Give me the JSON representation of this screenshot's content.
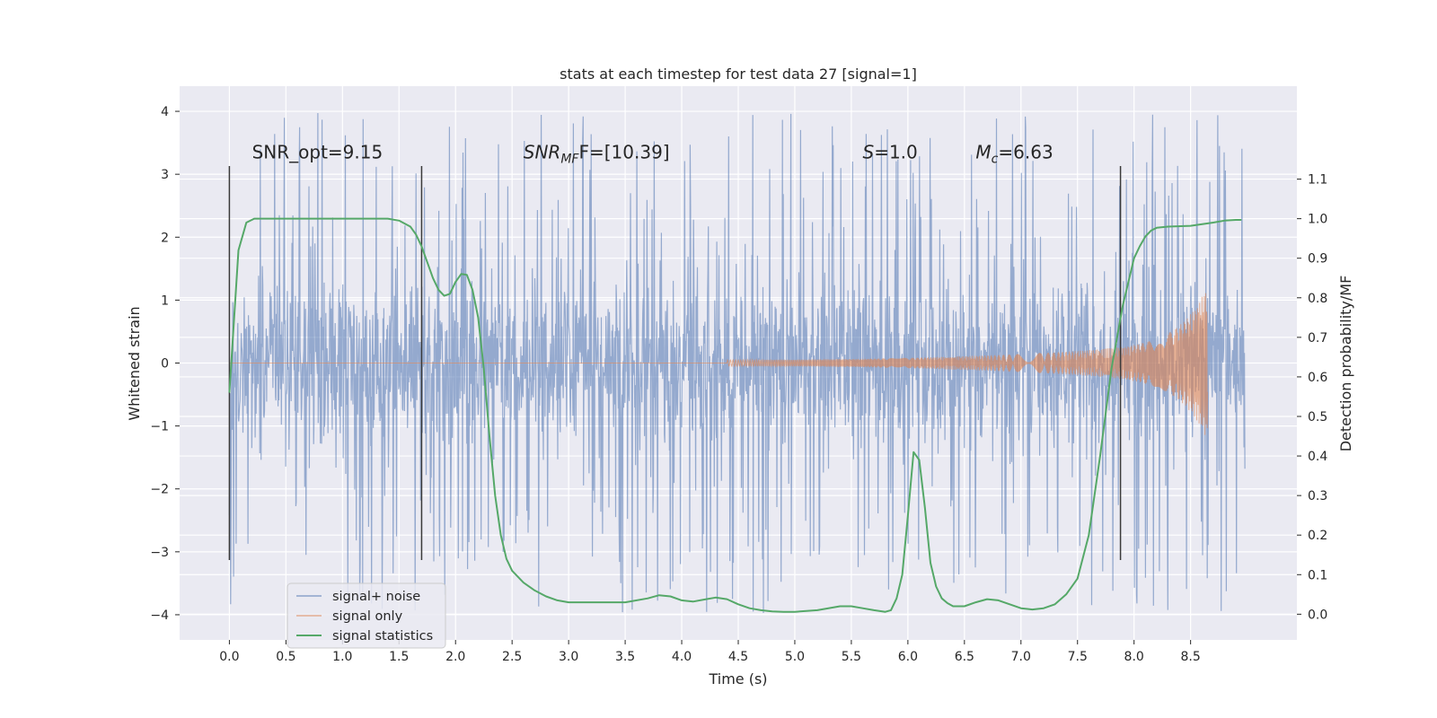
{
  "chart_data": {
    "type": "line",
    "title": "stats at each timestep for test data 27 [signal=1]",
    "xlabel": "Time (s)",
    "ylabel": "Whitened strain",
    "y2label": "Detection probability/MF",
    "xlim": [
      -0.44,
      9.44
    ],
    "ylim": [
      -4.4,
      4.4
    ],
    "y2lim": [
      -0.065,
      1.335
    ],
    "xticks": [
      0.0,
      0.5,
      1.0,
      1.5,
      2.0,
      2.5,
      3.0,
      3.5,
      4.0,
      4.5,
      5.0,
      5.5,
      6.0,
      6.5,
      7.0,
      7.5,
      8.0,
      8.5
    ],
    "xtick_labels": [
      "0.0",
      "0.5",
      "1.0",
      "1.5",
      "2.0",
      "2.5",
      "3.0",
      "3.5",
      "4.0",
      "4.5",
      "5.0",
      "5.5",
      "6.0",
      "6.5",
      "7.0",
      "7.5",
      "8.0",
      "8.5"
    ],
    "yticks": [
      4,
      3,
      2,
      1,
      0,
      -1,
      -2,
      -3,
      -4
    ],
    "ytick_labels": [
      "4",
      "3",
      "2",
      "1",
      "0",
      "−1",
      "−2",
      "−3",
      "−4"
    ],
    "y2ticks": [
      1.1,
      1.0,
      0.9,
      0.8,
      0.7,
      0.6,
      0.5,
      0.4,
      0.3,
      0.2,
      0.1,
      0.0
    ],
    "y2tick_labels": [
      "1.1",
      "1.0",
      "0.9",
      "0.8",
      "0.7",
      "0.6",
      "0.5",
      "0.4",
      "0.3",
      "0.2",
      "0.1",
      "0.0"
    ],
    "grid": true,
    "legend_position": "bottom-left",
    "series": [
      {
        "name": "signal+ noise",
        "color": "#4c72b0",
        "kind": "noise",
        "x_range": [
          0.0,
          8.98
        ],
        "core_std": 0.62,
        "spike_extent": 4.0
      },
      {
        "name": "signal only",
        "color": "#dd8452",
        "kind": "chirp",
        "x_range": [
          0.0,
          8.65
        ],
        "start_amp": 0.0,
        "peak_amp": 1.2,
        "tail_amp": 0.95
      },
      {
        "name": "signal statistics",
        "color": "#55a868",
        "axis": "right",
        "x": [
          0.0,
          0.08,
          0.15,
          0.22,
          0.3,
          0.5,
          0.8,
          1.0,
          1.2,
          1.4,
          1.5,
          1.6,
          1.65,
          1.7,
          1.75,
          1.8,
          1.85,
          1.9,
          1.95,
          2.0,
          2.05,
          2.1,
          2.15,
          2.2,
          2.25,
          2.3,
          2.35,
          2.4,
          2.45,
          2.5,
          2.6,
          2.7,
          2.8,
          2.9,
          3.0,
          3.2,
          3.5,
          3.7,
          3.8,
          3.9,
          4.0,
          4.1,
          4.2,
          4.3,
          4.4,
          4.5,
          4.6,
          4.7,
          4.8,
          4.9,
          5.0,
          5.2,
          5.4,
          5.5,
          5.6,
          5.7,
          5.8,
          5.85,
          5.9,
          5.95,
          6.0,
          6.05,
          6.1,
          6.15,
          6.2,
          6.25,
          6.3,
          6.35,
          6.4,
          6.5,
          6.6,
          6.7,
          6.8,
          6.9,
          7.0,
          7.1,
          7.2,
          7.3,
          7.4,
          7.5,
          7.6,
          7.7,
          7.8,
          7.9,
          8.0,
          8.05,
          8.1,
          8.15,
          8.2,
          8.3,
          8.5,
          8.7,
          8.8,
          8.9,
          8.95
        ],
        "values": [
          0.56,
          0.92,
          0.99,
          1.0,
          1.0,
          1.0,
          1.0,
          1.0,
          1.0,
          1.0,
          0.995,
          0.98,
          0.96,
          0.93,
          0.89,
          0.85,
          0.82,
          0.805,
          0.81,
          0.84,
          0.86,
          0.858,
          0.82,
          0.75,
          0.62,
          0.45,
          0.3,
          0.2,
          0.14,
          0.11,
          0.08,
          0.06,
          0.045,
          0.035,
          0.03,
          0.03,
          0.03,
          0.04,
          0.048,
          0.045,
          0.035,
          0.032,
          0.037,
          0.042,
          0.038,
          0.025,
          0.015,
          0.01,
          0.007,
          0.006,
          0.006,
          0.01,
          0.02,
          0.02,
          0.015,
          0.01,
          0.006,
          0.01,
          0.04,
          0.1,
          0.25,
          0.41,
          0.39,
          0.27,
          0.13,
          0.07,
          0.04,
          0.028,
          0.02,
          0.02,
          0.03,
          0.038,
          0.035,
          0.025,
          0.015,
          0.012,
          0.015,
          0.025,
          0.05,
          0.09,
          0.2,
          0.4,
          0.62,
          0.78,
          0.9,
          0.93,
          0.955,
          0.97,
          0.977,
          0.98,
          0.982,
          0.99,
          0.995,
          0.997,
          0.997
        ]
      }
    ],
    "vlines": {
      "color": "#3a3a3a",
      "x": [
        0.0,
        1.7,
        7.88
      ],
      "ymin": -3.13,
      "ymax": 3.13
    },
    "annotations": [
      {
        "name": "snr-opt",
        "text": "SNR_opt=9.15",
        "x": 0.2,
        "y": 3.25
      },
      {
        "name": "snr-mf",
        "base": "SNR",
        "sub": "MF",
        "tail": "F=[10.39]",
        "x": 2.6,
        "y": 3.25
      },
      {
        "name": "s-stat",
        "base": "S",
        "tail": "=1.0",
        "x": 5.6,
        "y": 3.25
      },
      {
        "name": "chirp-mass",
        "base": "M",
        "sub": "c",
        "tail": "=6.63",
        "x": 6.6,
        "y": 3.25
      }
    ]
  }
}
